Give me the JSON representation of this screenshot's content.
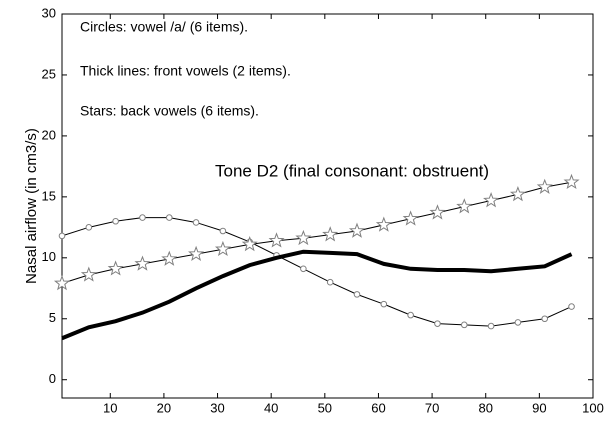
{
  "chart_data": {
    "type": "line",
    "ylabel": "Nasal airflow (in cm3/s)",
    "annotations": [
      "Circles: vowel /a/ (6 items).",
      "Thick lines: front vowels (2 items).",
      "Stars: back vowels (6 items).",
      "Tone D2 (final consonant: obstruent)"
    ],
    "x": [
      1,
      6,
      11,
      16,
      21,
      26,
      31,
      36,
      41,
      46,
      51,
      56,
      61,
      66,
      71,
      76,
      81,
      86,
      91,
      96
    ],
    "series": [
      {
        "marker": "circle",
        "color": "#808080",
        "width": 1,
        "values": [
          11.8,
          12.5,
          13.0,
          13.3,
          13.3,
          12.9,
          12.2,
          11.3,
          10.2,
          9.1,
          8.0,
          7.0,
          6.2,
          5.3,
          4.6,
          4.5,
          4.4,
          4.7,
          5.0,
          6.0
        ]
      },
      {
        "marker": "none",
        "color": "#000000",
        "width": 4,
        "values": [
          3.4,
          4.3,
          4.8,
          5.5,
          6.4,
          7.5,
          8.5,
          9.4,
          10.0,
          10.5,
          10.4,
          10.3,
          9.5,
          9.1,
          9.0,
          9.0,
          8.9,
          9.1,
          9.3,
          10.3
        ]
      },
      {
        "marker": "star",
        "color": "#808080",
        "width": 1,
        "values": [
          7.9,
          8.6,
          9.1,
          9.5,
          9.9,
          10.3,
          10.7,
          11.1,
          11.4,
          11.6,
          11.9,
          12.2,
          12.7,
          13.2,
          13.7,
          14.2,
          14.7,
          15.2,
          15.8,
          16.2
        ]
      }
    ],
    "xlim": [
      1,
      100
    ],
    "ylim": [
      -1.5,
      30
    ],
    "xticks": [
      10,
      20,
      30,
      40,
      50,
      60,
      70,
      80,
      90,
      100
    ],
    "yticks": [
      0,
      5,
      10,
      15,
      20,
      25,
      30
    ],
    "grid": false
  }
}
